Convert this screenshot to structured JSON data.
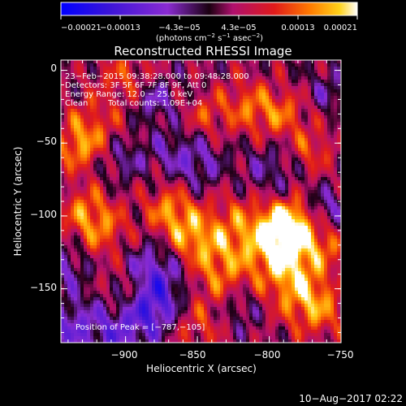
{
  "chart_data": {
    "type": "heatmap",
    "title": "Reconstructed RHESSI Image",
    "xlabel": "Heliocentric X (arcsec)",
    "ylabel": "Heliocentric Y (arcsec)",
    "xlim": [
      -945,
      -750
    ],
    "ylim": [
      -187,
      7
    ],
    "x_ticks": [
      {
        "value": -900,
        "label": "−900"
      },
      {
        "value": -850,
        "label": "−850"
      },
      {
        "value": -800,
        "label": "−800"
      },
      {
        "value": -750,
        "label": "−750"
      }
    ],
    "y_ticks": [
      {
        "value": 0,
        "label": "0"
      },
      {
        "value": -50,
        "label": "−50"
      },
      {
        "value": -100,
        "label": "−100"
      },
      {
        "value": -150,
        "label": "−150"
      }
    ],
    "colorbar": {
      "range": [
        -0.00021,
        0.00021
      ],
      "tick_labels": [
        "−0.00021",
        "−0.00013",
        "−4.3e−05",
        "4.3e−05",
        "0.00013",
        "0.00021"
      ],
      "unit_main": "(photons cm",
      "unit_sup1": "−2",
      "unit_mid": " s",
      "unit_sup2": "−1",
      "unit_mid2": " asec",
      "unit_sup3": "−2",
      "unit_end": ")",
      "colors": [
        "#0000ff",
        "#5a14c8",
        "#8a2bd2",
        "#b0106e",
        "#e01a1a",
        "#ff7a00",
        "#ffd21a",
        "#ffffff"
      ]
    },
    "annotations": {
      "time": "23−Feb−2015 09:38:28.000 to 09:48:28.000",
      "detectors": "Detectors: 3F 5F 6F 7F 8F 9F, Att 0",
      "energy": "Energy Range: 12.0 − 25.0 keV",
      "algorithm": "Clean",
      "counts": "Total counts: 1.09E+04",
      "peak": "Position of Peak = [−787,−105]"
    },
    "peak_position": [
      -787,
      -105
    ],
    "date_stamp": "10−Aug−2017 02:22"
  }
}
